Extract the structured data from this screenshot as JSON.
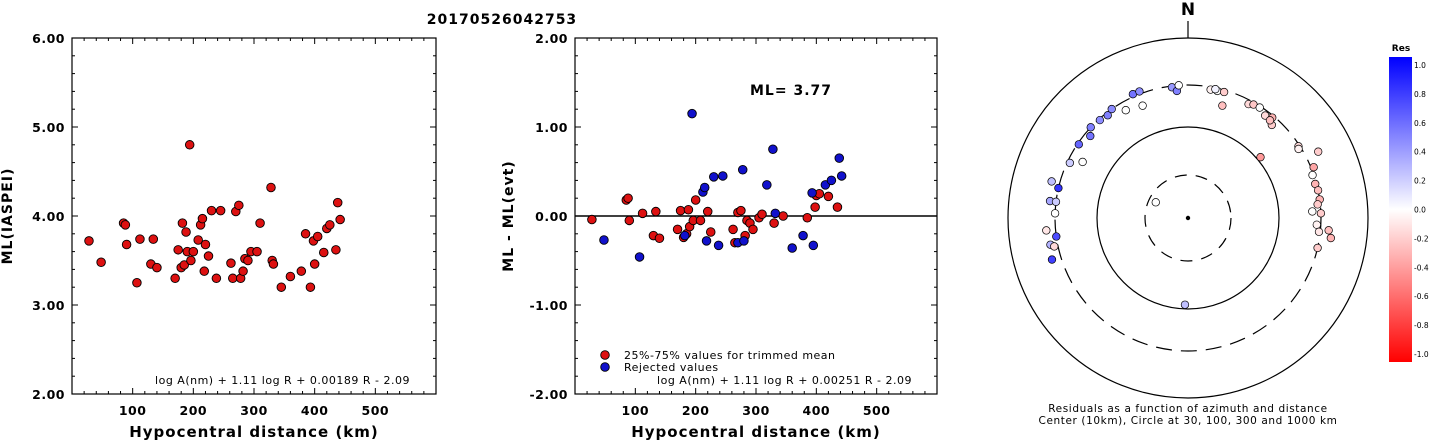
{
  "header": {
    "event_id": "20170526042753"
  },
  "chart_data": [
    {
      "type": "scatter",
      "ylabel": "ML(IASPEI)",
      "xlabel": "Hypocentral distance (km)",
      "xlim": [
        0,
        600
      ],
      "ylim": [
        2.0,
        6.0
      ],
      "x_ticks": [
        "100",
        "200",
        "300",
        "400",
        "500"
      ],
      "y_ticks": [
        "2.00",
        "3.00",
        "4.00",
        "5.00",
        "6.00"
      ],
      "formula": "log A(nm) + 1.11 log R + 0.00189 R - 2.09",
      "marker_color": "#dd1111",
      "points": [
        [
          28,
          3.72
        ],
        [
          48,
          3.48
        ],
        [
          85,
          3.92
        ],
        [
          88,
          3.9
        ],
        [
          90,
          3.68
        ],
        [
          107,
          3.25
        ],
        [
          112,
          3.74
        ],
        [
          130,
          3.46
        ],
        [
          134,
          3.74
        ],
        [
          140,
          3.42
        ],
        [
          170,
          3.3
        ],
        [
          175,
          3.62
        ],
        [
          180,
          3.42
        ],
        [
          182,
          3.92
        ],
        [
          185,
          3.45
        ],
        [
          188,
          3.82
        ],
        [
          190,
          3.6
        ],
        [
          194,
          4.8
        ],
        [
          196,
          3.5
        ],
        [
          200,
          3.6
        ],
        [
          208,
          3.73
        ],
        [
          212,
          3.9
        ],
        [
          215,
          3.97
        ],
        [
          218,
          3.38
        ],
        [
          220,
          3.68
        ],
        [
          225,
          3.55
        ],
        [
          230,
          4.06
        ],
        [
          238,
          3.3
        ],
        [
          245,
          4.06
        ],
        [
          262,
          3.47
        ],
        [
          265,
          3.3
        ],
        [
          270,
          4.05
        ],
        [
          275,
          4.12
        ],
        [
          278,
          3.3
        ],
        [
          282,
          3.38
        ],
        [
          285,
          3.52
        ],
        [
          290,
          3.5
        ],
        [
          295,
          3.6
        ],
        [
          305,
          3.6
        ],
        [
          310,
          3.92
        ],
        [
          328,
          4.32
        ],
        [
          330,
          3.5
        ],
        [
          332,
          3.46
        ],
        [
          345,
          3.2
        ],
        [
          360,
          3.32
        ],
        [
          378,
          3.38
        ],
        [
          385,
          3.8
        ],
        [
          393,
          3.2
        ],
        [
          398,
          3.72
        ],
        [
          400,
          3.46
        ],
        [
          405,
          3.77
        ],
        [
          415,
          3.59
        ],
        [
          420,
          3.86
        ],
        [
          425,
          3.9
        ],
        [
          435,
          3.62
        ],
        [
          438,
          4.15
        ],
        [
          442,
          3.96
        ]
      ]
    },
    {
      "type": "scatter",
      "ylabel": "ML - ML(evt)",
      "xlabel": "Hypocentral distance (km)",
      "xlim": [
        0,
        600
      ],
      "ylim": [
        -2.0,
        2.0
      ],
      "x_ticks": [
        "100",
        "200",
        "300",
        "400",
        "500"
      ],
      "y_ticks": [
        "-2.00",
        "-1.00",
        "0.00",
        "1.00",
        "2.00"
      ],
      "ml_label": "ML= 3.77",
      "formula": "log A(nm) + 1.11 log R + 0.00251 R - 2.09",
      "series": [
        {
          "name": "25%-75% values for trimmed mean",
          "color": "#dd1111",
          "points": [
            [
              28,
              -0.04
            ],
            [
              85,
              0.18
            ],
            [
              88,
              0.2
            ],
            [
              90,
              -0.05
            ],
            [
              112,
              0.03
            ],
            [
              130,
              -0.22
            ],
            [
              134,
              0.05
            ],
            [
              140,
              -0.25
            ],
            [
              170,
              -0.15
            ],
            [
              175,
              0.06
            ],
            [
              180,
              -0.24
            ],
            [
              185,
              -0.2
            ],
            [
              188,
              0.07
            ],
            [
              190,
              -0.12
            ],
            [
              196,
              -0.05
            ],
            [
              200,
              0.18
            ],
            [
              208,
              -0.05
            ],
            [
              220,
              0.05
            ],
            [
              225,
              -0.18
            ],
            [
              262,
              -0.15
            ],
            [
              265,
              -0.3
            ],
            [
              270,
              0.04
            ],
            [
              275,
              0.06
            ],
            [
              282,
              -0.22
            ],
            [
              285,
              -0.05
            ],
            [
              290,
              -0.08
            ],
            [
              295,
              -0.15
            ],
            [
              305,
              -0.02
            ],
            [
              310,
              0.02
            ],
            [
              330,
              -0.08
            ],
            [
              345,
              0.0
            ],
            [
              385,
              -0.02
            ],
            [
              398,
              0.1
            ],
            [
              400,
              0.23
            ],
            [
              405,
              0.25
            ],
            [
              420,
              0.22
            ],
            [
              435,
              0.1
            ]
          ]
        },
        {
          "name": "Rejected values",
          "color": "#1111cc",
          "points": [
            [
              48,
              -0.27
            ],
            [
              107,
              -0.46
            ],
            [
              182,
              -0.22
            ],
            [
              194,
              1.15
            ],
            [
              212,
              0.27
            ],
            [
              215,
              0.32
            ],
            [
              218,
              -0.28
            ],
            [
              230,
              0.44
            ],
            [
              238,
              -0.33
            ],
            [
              245,
              0.45
            ],
            [
              270,
              -0.3
            ],
            [
              278,
              0.52
            ],
            [
              280,
              -0.28
            ],
            [
              318,
              0.35
            ],
            [
              328,
              0.75
            ],
            [
              332,
              0.03
            ],
            [
              360,
              -0.36
            ],
            [
              378,
              -0.22
            ],
            [
              393,
              0.26
            ],
            [
              395,
              -0.33
            ],
            [
              415,
              0.35
            ],
            [
              425,
              0.4
            ],
            [
              438,
              0.65
            ],
            [
              442,
              0.45
            ]
          ]
        }
      ]
    },
    {
      "type": "polar-scatter",
      "north_label": "N",
      "caption_line1": "Residuals as a function of azimuth and distance",
      "caption_line2": "Center (10km), Circle at 30, 100, 300 and 1000 km",
      "colorbar": {
        "title": "Res",
        "tick_labels": [
          "1.0",
          "0.8",
          "0.6",
          "0.4",
          "0.2",
          "0.0",
          "-0.2",
          "-0.4",
          "-0.6",
          "-0.8",
          "-1.0"
        ],
        "max_color": "#0000ff",
        "mid_color": "#ffffff",
        "min_color": "#ff0000"
      },
      "stations": [
        {
          "azimuth": 13,
          "distance": 280,
          "residual": 0.0
        },
        {
          "azimuth": 10,
          "distance": 280,
          "residual": -0.05
        },
        {
          "azimuth": 12,
          "distance": 290,
          "residual": 0.05
        },
        {
          "azimuth": 16,
          "distance": 285,
          "residual": -0.2
        },
        {
          "azimuth": 28,
          "distance": 270,
          "residual": -0.15
        },
        {
          "azimuth": 30,
          "distance": 285,
          "residual": -0.22
        },
        {
          "azimuth": 33,
          "distance": 290,
          "residual": 0.0
        },
        {
          "azimuth": 37,
          "distance": 265,
          "residual": -0.15
        },
        {
          "azimuth": 40,
          "distance": 285,
          "residual": -0.3
        },
        {
          "azimuth": 42,
          "distance": 245,
          "residual": -0.2
        },
        {
          "azimuth": 17,
          "distance": 200,
          "residual": -0.25
        },
        {
          "azimuth": 40,
          "distance": 260,
          "residual": -0.25
        },
        {
          "azimuth": 57,
          "distance": 290,
          "residual": -0.15
        },
        {
          "azimuth": 58,
          "distance": 280,
          "residual": -0.05
        },
        {
          "azimuth": 68,
          "distance": 320,
          "residual": -0.35
        },
        {
          "azimuth": 71,
          "distance": 290,
          "residual": 0.0
        },
        {
          "azimuth": 75,
          "distance": 290,
          "residual": -0.3
        },
        {
          "azimuth": 78,
          "distance": 300,
          "residual": -0.25
        },
        {
          "azimuth": 82,
          "distance": 300,
          "residual": -0.3
        },
        {
          "azimuth": 84,
          "distance": 280,
          "residual": -0.2
        },
        {
          "azimuth": 88,
          "distance": 300,
          "residual": -0.2
        },
        {
          "azimuth": 87,
          "distance": 240,
          "residual": 0.0
        },
        {
          "azimuth": 93,
          "distance": 270,
          "residual": -0.05
        },
        {
          "azimuth": 96,
          "distance": 290,
          "residual": -0.1
        },
        {
          "azimuth": 95,
          "distance": 370,
          "residual": -0.25
        },
        {
          "azimuth": 98,
          "distance": 400,
          "residual": -0.3
        },
        {
          "azimuth": 103,
          "distance": 300,
          "residual": -0.2
        },
        {
          "azimuth": 50,
          "distance": 110,
          "residual": -0.4
        },
        {
          "azimuth": 63,
          "distance": 420,
          "residual": -0.2
        },
        {
          "azimuth": 182,
          "distance": 90,
          "residual": 0.25
        },
        {
          "azimuth": 296,
          "distance": 25,
          "residual": 0.0
        },
        {
          "azimuth": -62,
          "distance": 210,
          "residual": 0.0
        },
        {
          "azimuth": -65,
          "distance": 280,
          "residual": 0.2
        },
        {
          "azimuth": -50,
          "distance": 260,
          "residual": 0.55
        },
        {
          "azimuth": -47,
          "distance": 300,
          "residual": 0.5
        },
        {
          "azimuth": -56,
          "distance": 290,
          "residual": 0.6
        },
        {
          "azimuth": -42,
          "distance": 290,
          "residual": 0.45
        },
        {
          "azimuth": -38,
          "distance": 280,
          "residual": 0.5
        },
        {
          "azimuth": -35,
          "distance": 300,
          "residual": 0.45
        },
        {
          "azimuth": -30,
          "distance": 240,
          "residual": 0.0
        },
        {
          "azimuth": -24,
          "distance": 320,
          "residual": 0.55
        },
        {
          "azimuth": -21,
          "distance": 320,
          "residual": 0.45
        },
        {
          "azimuth": -22,
          "distance": 220,
          "residual": 0.0
        },
        {
          "azimuth": -7,
          "distance": 290,
          "residual": 0.4
        },
        {
          "azimuth": -5,
          "distance": 260,
          "residual": 0.5
        },
        {
          "azimuth": -4,
          "distance": 300,
          "residual": 0.0
        },
        {
          "azimuth": -75,
          "distance": 370,
          "residual": 0.25
        },
        {
          "azimuth": -77,
          "distance": 300,
          "residual": 0.8
        },
        {
          "azimuth": -88,
          "distance": 300,
          "residual": 0.0
        },
        {
          "azimuth": -95,
          "distance": 380,
          "residual": -0.1
        },
        {
          "azimuth": -101,
          "distance": 360,
          "residual": 0.3
        },
        {
          "azimuth": -102,
          "distance": 330,
          "residual": -0.15
        },
        {
          "azimuth": -107,
          "distance": 380,
          "residual": 0.75
        },
        {
          "azimuth": -98,
          "distance": 300,
          "residual": 0.7
        },
        {
          "azimuth": -83,
          "distance": 350,
          "residual": 0.35
        },
        {
          "azimuth": -83,
          "distance": 300,
          "residual": 0.2
        }
      ]
    }
  ]
}
